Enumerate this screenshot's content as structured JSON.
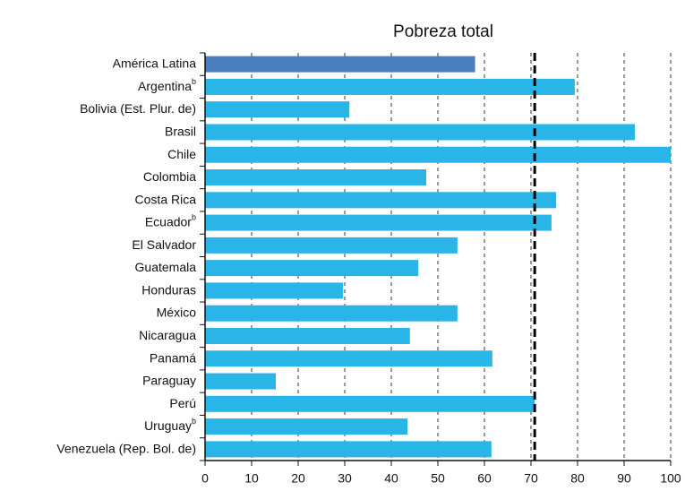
{
  "chart_data": {
    "type": "bar",
    "orientation": "horizontal",
    "title": "Pobreza total",
    "categories": [
      "América Latina",
      "Argentina",
      "Bolivia (Est. Plur. de)",
      "Brasil",
      "Chile",
      "Colombia",
      "Costa Rica",
      "Ecuador",
      "El Salvador",
      "Guatemala",
      "Honduras",
      "México",
      "Nicaragua",
      "Panamá",
      "Paraguay",
      "Perú",
      "Uruguay",
      "Venezuela (Rep. Bol. de)"
    ],
    "category_notes": [
      null,
      "b",
      null,
      null,
      null,
      null,
      null,
      "b",
      null,
      null,
      null,
      null,
      null,
      null,
      null,
      null,
      "b",
      null
    ],
    "values": [
      58,
      79.4,
      31,
      92.3,
      100,
      47.5,
      75.4,
      74.4,
      54.2,
      45.8,
      29.6,
      54.2,
      44,
      61.7,
      15.2,
      70.8,
      43.5,
      61.5
    ],
    "colors": [
      "#4a7ebf",
      "#29b5e8",
      "#29b5e8",
      "#29b5e8",
      "#29b5e8",
      "#29b5e8",
      "#29b5e8",
      "#29b5e8",
      "#29b5e8",
      "#29b5e8",
      "#29b5e8",
      "#29b5e8",
      "#29b5e8",
      "#29b5e8",
      "#29b5e8",
      "#29b5e8",
      "#29b5e8",
      "#29b5e8"
    ],
    "reference_value": 70.8,
    "xlim": [
      0,
      100
    ],
    "xticks": [
      0,
      10,
      20,
      30,
      40,
      50,
      60,
      70,
      80,
      90,
      100
    ],
    "grid": true
  }
}
